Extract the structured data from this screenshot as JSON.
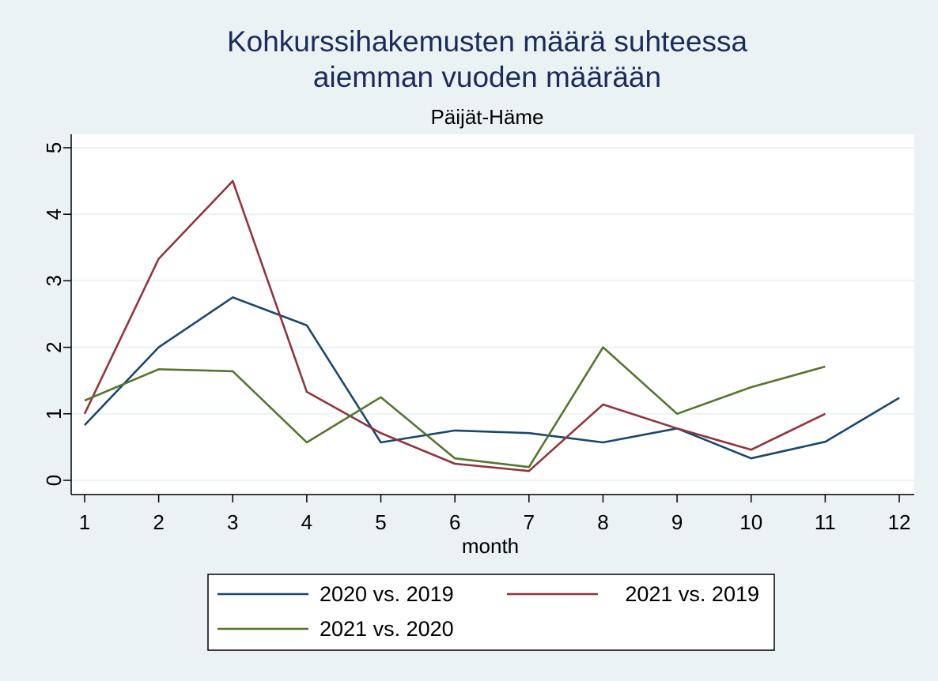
{
  "chart_data": {
    "type": "line",
    "title_lines": [
      "Kohkurssihakemusten määrä suhteessa",
      "aiemman vuoden määrään"
    ],
    "subtitle": "Päijät-Häme",
    "xlabel": "month",
    "ylabel": "",
    "xlim": [
      1,
      12
    ],
    "ylim": [
      0,
      5
    ],
    "x_ticks": [
      1,
      2,
      3,
      4,
      5,
      6,
      7,
      8,
      9,
      10,
      11,
      12
    ],
    "y_ticks": [
      0,
      1,
      2,
      3,
      4,
      5
    ],
    "grid": true,
    "legend_position": "bottom",
    "series": [
      {
        "name": "2020 vs. 2019",
        "color": "#1a476f",
        "x": [
          1,
          2,
          3,
          4,
          5,
          6,
          7,
          8,
          9,
          10,
          11,
          12
        ],
        "y": [
          0.83,
          2.0,
          2.75,
          2.33,
          0.57,
          0.75,
          0.71,
          0.57,
          0.78,
          0.33,
          0.58,
          1.24
        ]
      },
      {
        "name": "2021 vs. 2019",
        "color": "#90353b",
        "x": [
          1,
          2,
          3,
          4,
          5,
          6,
          7,
          8,
          9,
          10,
          11
        ],
        "y": [
          1.0,
          3.33,
          4.5,
          1.33,
          0.71,
          0.25,
          0.14,
          1.14,
          0.78,
          0.46,
          1.0
        ]
      },
      {
        "name": "2021 vs. 2020",
        "color": "#55752f",
        "x": [
          1,
          2,
          3,
          4,
          5,
          6,
          7,
          8,
          9,
          10,
          11
        ],
        "y": [
          1.2,
          1.67,
          1.64,
          0.57,
          1.25,
          0.33,
          0.2,
          2.0,
          1.0,
          1.4,
          1.71
        ]
      }
    ]
  }
}
